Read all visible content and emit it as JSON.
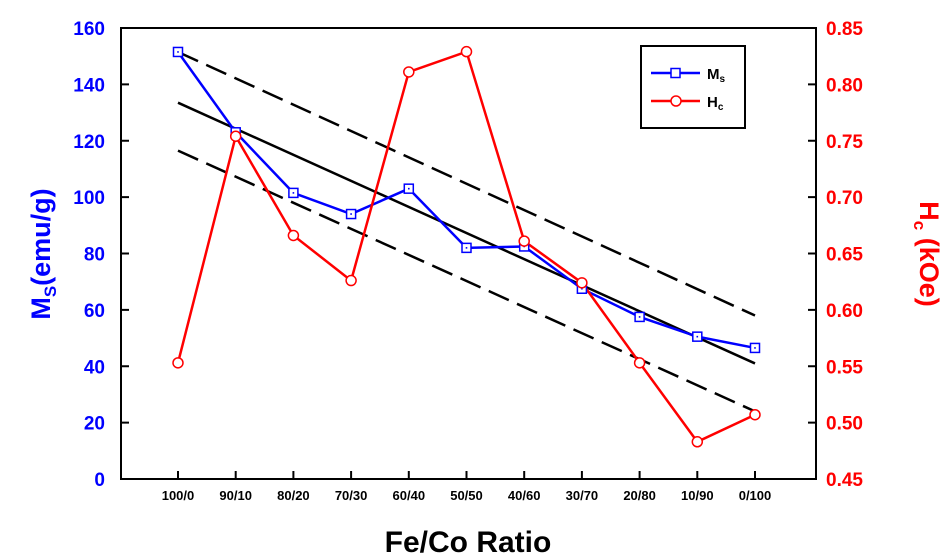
{
  "chart_data": {
    "type": "line",
    "categories": [
      "100/0",
      "90/10",
      "80/20",
      "70/30",
      "60/40",
      "50/50",
      "40/60",
      "30/70",
      "20/80",
      "10/90",
      "0/100"
    ],
    "xlabel": "Fe/Co Ratio",
    "ylabel_left": {
      "main": "M",
      "sub": "S",
      "rest": "(emu/g)"
    },
    "ylabel_right": {
      "main": "H",
      "sub": "c",
      "rest": " (kOe)"
    },
    "ylim_left": [
      0,
      160
    ],
    "yticks_left": [
      "0",
      "20",
      "40",
      "60",
      "80",
      "100",
      "120",
      "140",
      "160"
    ],
    "ylim_right": [
      0.45,
      0.85
    ],
    "yticks_right": [
      "0.45",
      "0.50",
      "0.55",
      "0.60",
      "0.65",
      "0.70",
      "0.75",
      "0.80",
      "0.85"
    ],
    "grid": false,
    "legend_position": "top-right",
    "series": [
      {
        "name": "M",
        "name_sub": "s",
        "axis": "left",
        "color": "#0000ff",
        "marker": "square",
        "values": [
          151.5,
          123,
          101.5,
          94,
          103,
          82,
          82.5,
          67.5,
          57.5,
          50.5,
          46.5
        ]
      },
      {
        "name": "H",
        "name_sub": "c",
        "axis": "right",
        "color": "#ff0000",
        "marker": "circle",
        "values": [
          0.553,
          0.754,
          0.666,
          0.626,
          0.811,
          0.829,
          0.661,
          0.624,
          0.553,
          0.483,
          0.507
        ]
      }
    ],
    "fit_lines": [
      {
        "style": "solid",
        "axis": "left",
        "color": "#000000",
        "start": 133.5,
        "end": 41
      },
      {
        "style": "dashed",
        "axis": "left",
        "color": "#000000",
        "start": 151.5,
        "end": 58
      },
      {
        "style": "dashed",
        "axis": "left",
        "color": "#000000",
        "start": 116.5,
        "end": 24
      }
    ],
    "colors": {
      "left_axis": "#0000ff",
      "right_axis": "#ff0000",
      "frame": "#000000"
    }
  }
}
